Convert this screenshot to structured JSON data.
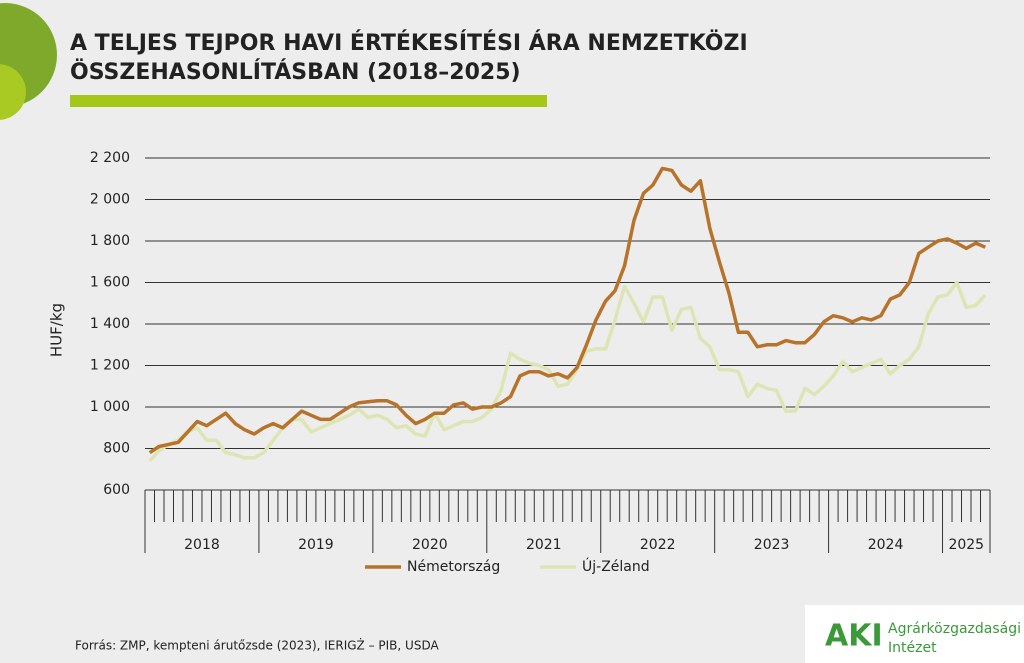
{
  "chart_data": {
    "type": "line",
    "title_lines": [
      "A TELJES TEJPOR HAVI ÉRTÉKESÍTÉSI ÁRA NEMZETKÖZI",
      "ÖSSZEHASONLÍTÁSBAN (2018–2025)"
    ],
    "y_label": "HUF/kg",
    "source": "Forrás: ZMP, kempteni árutőzsde (2023), IERIGŻ – PIB, USDA",
    "logo": {
      "abbr": "AKI",
      "line1": "Agrárközgazdasági",
      "line2": "Intézet"
    },
    "categories": [
      "2018",
      null,
      null,
      null,
      null,
      null,
      null,
      null,
      null,
      null,
      null,
      null,
      "2019",
      null,
      null,
      null,
      null,
      null,
      null,
      null,
      null,
      null,
      null,
      null,
      "2020",
      null,
      null,
      null,
      null,
      null,
      null,
      null,
      null,
      null,
      null,
      null,
      "2021",
      null,
      null,
      null,
      null,
      null,
      null,
      null,
      null,
      null,
      null,
      null,
      "2022",
      null,
      null,
      null,
      null,
      null,
      null,
      null,
      null,
      null,
      null,
      null,
      "2023",
      null,
      null,
      null,
      null,
      null,
      null,
      null,
      null,
      null,
      null,
      null,
      "2024",
      null,
      null,
      null,
      null,
      null,
      null,
      null,
      null,
      null,
      null,
      null,
      "2025",
      null,
      null,
      null,
      null
    ],
    "series": [
      {
        "name": "Németország",
        "color": "#b8732a",
        "values": [
          780,
          810,
          820,
          830,
          880,
          930,
          910,
          940,
          970,
          920,
          890,
          870,
          900,
          920,
          900,
          940,
          980,
          960,
          940,
          940,
          970,
          1000,
          1020,
          1025,
          1030,
          1030,
          1010,
          960,
          920,
          940,
          970,
          970,
          1010,
          1020,
          990,
          1000,
          1000,
          1020,
          1050,
          1150,
          1170,
          1170,
          1150,
          1160,
          1140,
          1190,
          1300,
          1420,
          1510,
          1560,
          1680,
          1900,
          2030,
          2070,
          2150,
          2140,
          2070,
          2040,
          2090,
          1860,
          1700,
          1550,
          1360,
          1360,
          1290,
          1300,
          1300,
          1320,
          1310,
          1310,
          1350,
          1410,
          1440,
          1430,
          1410,
          1430,
          1420,
          1440,
          1520,
          1540,
          1600,
          1740,
          1770,
          1800,
          1810,
          1790,
          1765,
          1790,
          1770
        ]
      },
      {
        "name": "Új-Zéland",
        "color": "#dde5b4",
        "values": [
          740,
          790,
          820,
          840,
          880,
          900,
          840,
          840,
          780,
          770,
          755,
          755,
          780,
          840,
          900,
          940,
          940,
          880,
          900,
          920,
          940,
          960,
          990,
          950,
          960,
          940,
          900,
          910,
          870,
          860,
          970,
          890,
          910,
          930,
          930,
          950,
          990,
          1080,
          1260,
          1230,
          1210,
          1200,
          1180,
          1100,
          1110,
          1180,
          1270,
          1280,
          1280,
          1420,
          1580,
          1500,
          1410,
          1530,
          1530,
          1370,
          1470,
          1480,
          1330,
          1290,
          1180,
          1180,
          1170,
          1050,
          1110,
          1090,
          1080,
          980,
          980,
          1090,
          1060,
          1100,
          1150,
          1220,
          1170,
          1190,
          1210,
          1230,
          1160,
          1200,
          1230,
          1290,
          1450,
          1530,
          1540,
          1600,
          1480,
          1490,
          1540
        ]
      }
    ],
    "ylim": [
      600,
      2200
    ],
    "yticks": [
      600,
      800,
      {
        "value": 1000,
        "label": "1 000"
      },
      {
        "value": 1200,
        "label": "1 200"
      },
      {
        "value": 1400,
        "label": "1 400"
      },
      {
        "value": 1600,
        "label": "1 600"
      },
      {
        "value": 1800,
        "label": "1 800"
      },
      {
        "value": 2000,
        "label": "2 000"
      },
      {
        "value": 2200,
        "label": "2 200"
      }
    ],
    "grid": true
  }
}
